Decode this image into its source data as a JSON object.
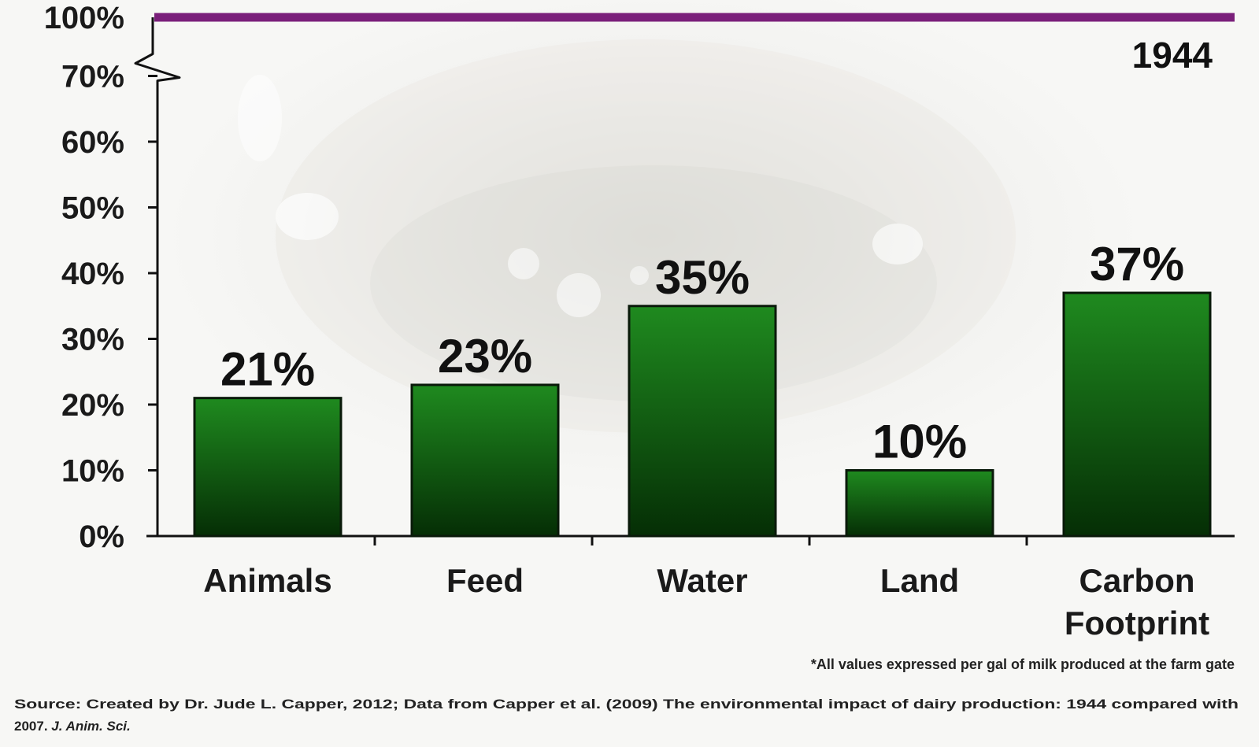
{
  "chart_data": {
    "type": "bar",
    "categories": [
      "Animals",
      "Feed",
      "Water",
      "Land",
      "Carbon\nFootprint"
    ],
    "values": [
      21,
      23,
      35,
      10,
      37
    ],
    "value_labels": [
      "21%",
      "23%",
      "35%",
      "10%",
      "37%"
    ],
    "reference_line": {
      "label": "1944",
      "value": 100
    },
    "y_ticks": [
      "0%",
      "10%",
      "20%",
      "30%",
      "40%",
      "50%",
      "60%",
      "70%",
      "100%"
    ],
    "ylim": [
      0,
      100
    ],
    "y_axis_break": "between 70% and 100%",
    "grid": false,
    "legend": "none",
    "title": "",
    "xlabel": "",
    "ylabel": ""
  },
  "colors": {
    "bar_top": "#1f8a1f",
    "bar_bottom": "#052e05",
    "reference_line": "#7a1f7a",
    "axis": "#111111"
  },
  "footnote": "*All values expressed per gal of milk produced at the farm gate",
  "source": {
    "line1": "Source: Created by Dr. Jude L. Capper, 2012; Data from Capper et al. (2009) The environmental impact of dairy production: 1944 compared with",
    "line2_prefix": "2007. ",
    "line2_journal": "J. Anim. Sci."
  }
}
